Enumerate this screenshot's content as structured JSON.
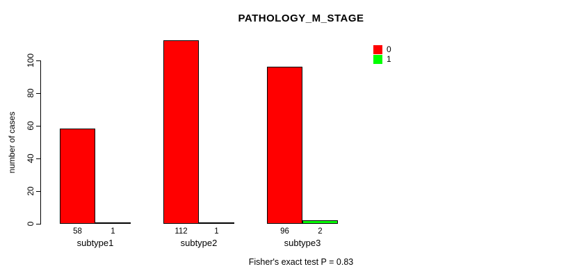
{
  "title": "PATHOLOGY_M_STAGE",
  "footer": "Fisher's exact test P = 0.83",
  "chart_data": {
    "type": "bar",
    "title": "PATHOLOGY_M_STAGE",
    "xlabel": "",
    "ylabel": "number of cases",
    "categories": [
      "subtype1",
      "subtype2",
      "subtype3"
    ],
    "series": [
      {
        "name": "0",
        "color": "#FF0000",
        "values": [
          58,
          112,
          96
        ]
      },
      {
        "name": "1",
        "color": "#00FF00",
        "values": [
          1,
          1,
          2
        ]
      }
    ],
    "bar_value_labels": {
      "subtype1": [
        58,
        1
      ],
      "subtype2": [
        112,
        1
      ],
      "subtype3": [
        96,
        2
      ]
    },
    "ylim": [
      0,
      100
    ],
    "yticks": [
      0,
      20,
      40,
      60,
      80,
      100
    ],
    "grid": false,
    "legend_position": "top-right",
    "legend_entries": [
      "0",
      "1"
    ],
    "annotation": "Fisher's exact test P = 0.83"
  }
}
